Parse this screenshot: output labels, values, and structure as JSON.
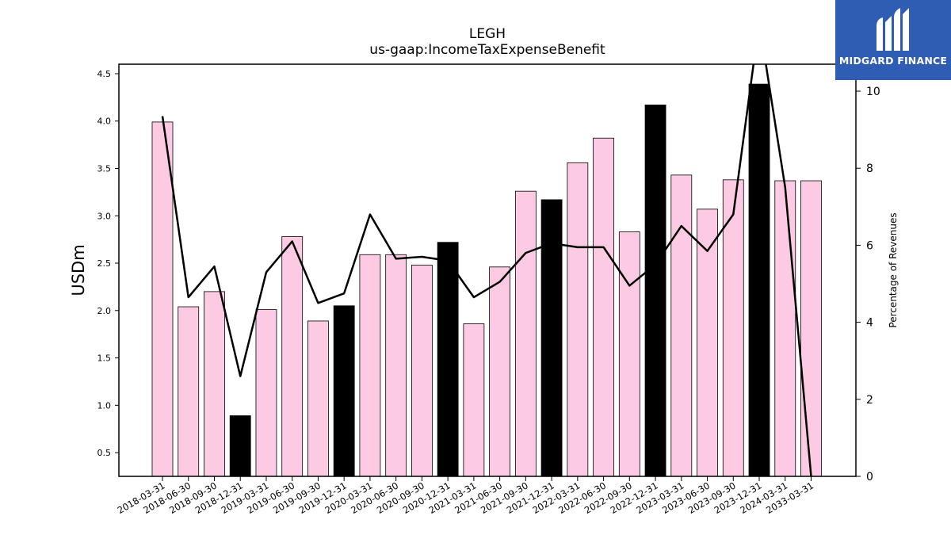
{
  "chart_data": {
    "type": "bar",
    "title": "LEGH",
    "subtitle": "us-gaap:IncomeTaxExpenseBenefit",
    "ylabel": "USDm",
    "y2label": "Percentage of Revenues",
    "ylim": [
      0.25,
      4.6
    ],
    "y2lim": [
      0,
      10.7
    ],
    "yticks": [
      "0.5",
      "1.0",
      "1.5",
      "2.0",
      "2.5",
      "3.0",
      "3.5",
      "4.0",
      "4.5"
    ],
    "y2ticks": [
      "0",
      "2",
      "4",
      "6",
      "8",
      "10"
    ],
    "categories": [
      "2018-03-31",
      "2018-06-30",
      "2018-09-30",
      "2018-12-31",
      "2019-03-31",
      "2019-06-30",
      "2019-09-30",
      "2019-12-31",
      "2020-03-31",
      "2020-06-30",
      "2020-09-30",
      "2020-12-31",
      "2021-03-31",
      "2021-06-30",
      "2021-09-30",
      "2021-12-31",
      "2022-03-31",
      "2022-06-30",
      "2022-09-30",
      "2022-12-31",
      "2023-03-31",
      "2023-06-30",
      "2023-09-30",
      "2023-12-31",
      "2024-03-31",
      "2033-03-31"
    ],
    "series": [
      {
        "type": "bar",
        "values": [
          3.99,
          2.04,
          2.2,
          0.89,
          2.01,
          2.78,
          1.89,
          2.05,
          2.59,
          2.59,
          2.48,
          2.72,
          1.86,
          2.46,
          3.26,
          3.17,
          3.56,
          3.82,
          2.83,
          4.17,
          3.43,
          3.07,
          3.38,
          4.39,
          3.37,
          3.37
        ],
        "highlight": [
          false,
          false,
          false,
          true,
          false,
          false,
          false,
          true,
          false,
          false,
          false,
          true,
          false,
          false,
          false,
          true,
          false,
          false,
          false,
          true,
          false,
          false,
          false,
          true,
          false,
          false
        ],
        "color": "#fccae2",
        "highlight_color": "#000000"
      },
      {
        "type": "line",
        "axis": "right",
        "values": [
          9.35,
          4.65,
          5.45,
          2.6,
          5.3,
          6.1,
          4.5,
          4.75,
          6.8,
          5.65,
          5.7,
          5.6,
          4.65,
          5.05,
          5.8,
          6.05,
          5.95,
          5.95,
          4.95,
          5.5,
          6.5,
          5.85,
          6.8,
          11.8,
          7.5,
          0.0
        ],
        "color": "#000000"
      }
    ],
    "grid": false
  },
  "logo": {
    "text": "MIDGARD FINANCE"
  }
}
